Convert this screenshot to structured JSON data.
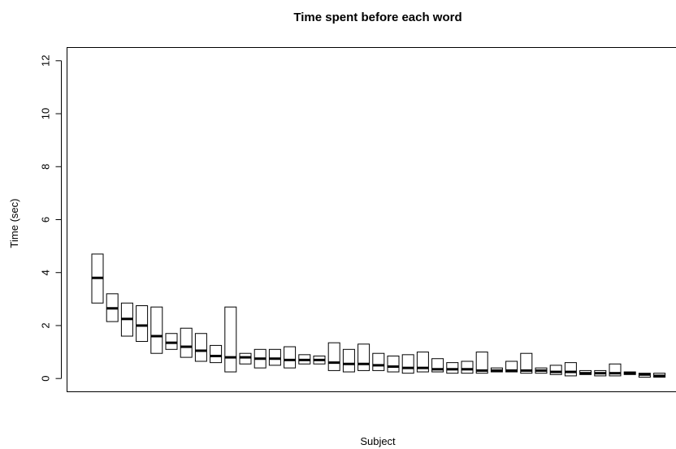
{
  "chart_data": {
    "type": "box",
    "title": "Time spent before each word",
    "xlabel": "Subject",
    "ylabel": "Time (sec)",
    "ylim": [
      -0.5,
      12.5
    ],
    "yticks": [
      0,
      2,
      4,
      6,
      8,
      10,
      12
    ],
    "grid": false,
    "boxes": [
      {
        "q1": 2.85,
        "median": 3.8,
        "q3": 4.7
      },
      {
        "q1": 2.15,
        "median": 2.65,
        "q3": 3.2
      },
      {
        "q1": 1.6,
        "median": 2.25,
        "q3": 2.85
      },
      {
        "q1": 1.4,
        "median": 2.0,
        "q3": 2.75
      },
      {
        "q1": 0.95,
        "median": 1.6,
        "q3": 2.7
      },
      {
        "q1": 1.1,
        "median": 1.35,
        "q3": 1.7
      },
      {
        "q1": 0.8,
        "median": 1.2,
        "q3": 1.9
      },
      {
        "q1": 0.65,
        "median": 1.05,
        "q3": 1.7
      },
      {
        "q1": 0.6,
        "median": 0.85,
        "q3": 1.25
      },
      {
        "q1": 0.25,
        "median": 0.8,
        "q3": 2.7
      },
      {
        "q1": 0.55,
        "median": 0.8,
        "q3": 0.95
      },
      {
        "q1": 0.4,
        "median": 0.75,
        "q3": 1.1
      },
      {
        "q1": 0.5,
        "median": 0.75,
        "q3": 1.1
      },
      {
        "q1": 0.4,
        "median": 0.7,
        "q3": 1.2
      },
      {
        "q1": 0.55,
        "median": 0.7,
        "q3": 0.9
      },
      {
        "q1": 0.55,
        "median": 0.7,
        "q3": 0.85
      },
      {
        "q1": 0.3,
        "median": 0.6,
        "q3": 1.35
      },
      {
        "q1": 0.25,
        "median": 0.55,
        "q3": 1.1
      },
      {
        "q1": 0.3,
        "median": 0.55,
        "q3": 1.3
      },
      {
        "q1": 0.3,
        "median": 0.5,
        "q3": 0.95
      },
      {
        "q1": 0.25,
        "median": 0.45,
        "q3": 0.85
      },
      {
        "q1": 0.2,
        "median": 0.4,
        "q3": 0.9
      },
      {
        "q1": 0.25,
        "median": 0.4,
        "q3": 1.0
      },
      {
        "q1": 0.25,
        "median": 0.35,
        "q3": 0.75
      },
      {
        "q1": 0.2,
        "median": 0.35,
        "q3": 0.6
      },
      {
        "q1": 0.2,
        "median": 0.35,
        "q3": 0.65
      },
      {
        "q1": 0.2,
        "median": 0.3,
        "q3": 1.0
      },
      {
        "q1": 0.25,
        "median": 0.3,
        "q3": 0.4
      },
      {
        "q1": 0.25,
        "median": 0.3,
        "q3": 0.65
      },
      {
        "q1": 0.2,
        "median": 0.3,
        "q3": 0.95
      },
      {
        "q1": 0.2,
        "median": 0.3,
        "q3": 0.4
      },
      {
        "q1": 0.15,
        "median": 0.25,
        "q3": 0.5
      },
      {
        "q1": 0.1,
        "median": 0.25,
        "q3": 0.6
      },
      {
        "q1": 0.15,
        "median": 0.2,
        "q3": 0.3
      },
      {
        "q1": 0.1,
        "median": 0.2,
        "q3": 0.3
      },
      {
        "q1": 0.1,
        "median": 0.2,
        "q3": 0.55
      },
      {
        "q1": 0.15,
        "median": 0.2,
        "q3": 0.25
      },
      {
        "q1": 0.05,
        "median": 0.15,
        "q3": 0.2
      },
      {
        "q1": 0.05,
        "median": 0.1,
        "q3": 0.2
      }
    ]
  }
}
